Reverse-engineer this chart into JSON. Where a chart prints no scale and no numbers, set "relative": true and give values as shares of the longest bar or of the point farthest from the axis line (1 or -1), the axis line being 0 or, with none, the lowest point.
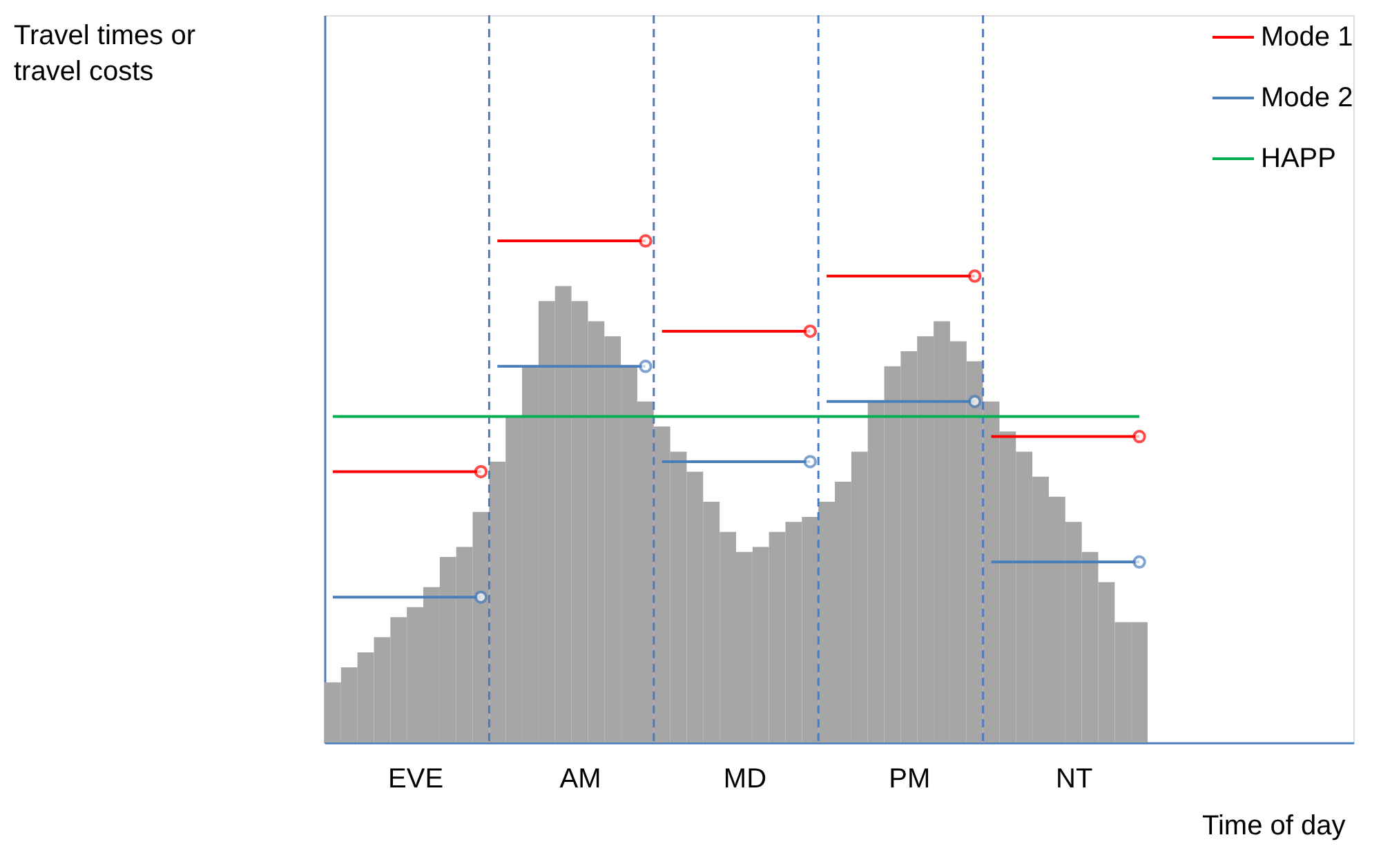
{
  "chart_data": {
    "type": "bar",
    "relative": true,
    "xlabel": "Time of day",
    "annotations": [
      "Travel times or travel costs"
    ],
    "color": "#a6a6a6",
    "categories": [
      null,
      null,
      null,
      null,
      null,
      "EVE",
      null,
      null,
      null,
      null,
      null,
      null,
      null,
      null,
      null,
      "AM",
      null,
      null,
      null,
      null,
      null,
      null,
      null,
      null,
      null,
      "MD",
      null,
      null,
      null,
      null,
      null,
      null,
      null,
      null,
      null,
      "PM",
      null,
      null,
      null,
      null,
      null,
      null,
      null,
      null,
      null,
      "NT",
      null,
      null,
      null,
      null
    ],
    "values": [
      0.12,
      0.15,
      0.18,
      0.21,
      0.25,
      0.27,
      0.31,
      0.37,
      0.39,
      0.46,
      0.56,
      0.65,
      0.75,
      0.88,
      0.91,
      0.88,
      0.84,
      0.81,
      0.75,
      0.68,
      0.63,
      0.58,
      0.54,
      0.48,
      0.42,
      0.38,
      0.39,
      0.42,
      0.44,
      0.45,
      0.48,
      0.52,
      0.58,
      0.68,
      0.75,
      0.78,
      0.81,
      0.84,
      0.8,
      0.76,
      0.68,
      0.62,
      0.58,
      0.53,
      0.49,
      0.44,
      0.38,
      0.32,
      0.24,
      0.24
    ],
    "series": [
      {
        "name": "Mode 1",
        "type": "step",
        "color": "#ff0000",
        "values": [
          0.54,
          0.54,
          0.54,
          0.54,
          0.54,
          0.54,
          0.54,
          0.54,
          0.54,
          0.54,
          1.0,
          1.0,
          1.0,
          1.0,
          1.0,
          1.0,
          1.0,
          1.0,
          1.0,
          1.0,
          0.82,
          0.82,
          0.82,
          0.82,
          0.82,
          0.82,
          0.82,
          0.82,
          0.82,
          0.82,
          0.93,
          0.93,
          0.93,
          0.93,
          0.93,
          0.93,
          0.93,
          0.93,
          0.93,
          0.93,
          0.61,
          0.61,
          0.61,
          0.61,
          0.61,
          0.61,
          0.61,
          0.61,
          0.61,
          0.61
        ]
      },
      {
        "name": "Mode 2",
        "type": "step",
        "color": "#4a7ebb",
        "values": [
          0.29,
          0.29,
          0.29,
          0.29,
          0.29,
          0.29,
          0.29,
          0.29,
          0.29,
          0.29,
          0.75,
          0.75,
          0.75,
          0.75,
          0.75,
          0.75,
          0.75,
          0.75,
          0.75,
          0.75,
          0.56,
          0.56,
          0.56,
          0.56,
          0.56,
          0.56,
          0.56,
          0.56,
          0.56,
          0.56,
          0.68,
          0.68,
          0.68,
          0.68,
          0.68,
          0.68,
          0.68,
          0.68,
          0.68,
          0.68,
          0.36,
          0.36,
          0.36,
          0.36,
          0.36,
          0.36,
          0.36,
          0.36,
          0.36,
          0.36
        ]
      },
      {
        "name": "HAPP",
        "type": "step",
        "color": "#00b050",
        "marker": "none",
        "values": [
          0.65,
          0.65,
          0.65,
          0.65,
          0.65,
          0.65,
          0.65,
          0.65,
          0.65,
          0.65,
          0.65,
          0.65,
          0.65,
          0.65,
          0.65,
          0.65,
          0.65,
          0.65,
          0.65,
          0.65,
          0.65,
          0.65,
          0.65,
          0.65,
          0.65,
          0.65,
          0.65,
          0.65,
          0.65,
          0.65,
          0.65,
          0.65,
          0.65,
          0.65,
          0.65,
          0.65,
          0.65,
          0.65,
          0.65,
          0.65,
          0.65,
          0.65,
          0.65,
          0.65,
          0.65,
          0.65,
          0.65,
          0.65,
          0.65,
          0.65
        ]
      }
    ],
    "legend": "top right"
  }
}
